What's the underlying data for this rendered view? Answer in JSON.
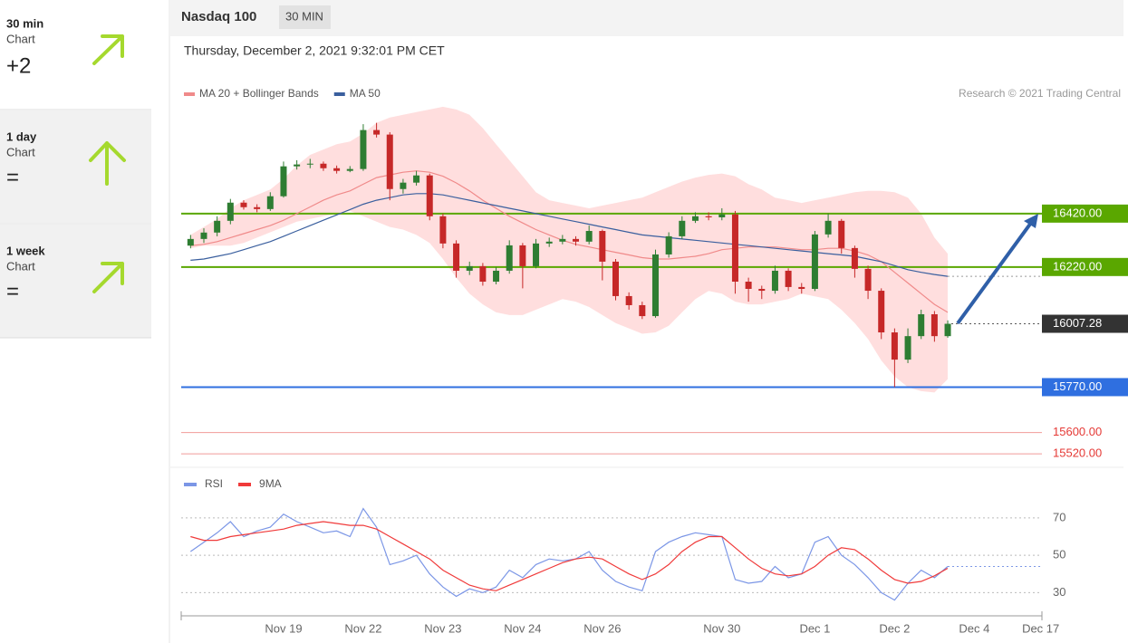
{
  "header": {
    "title": "Nasdaq 100",
    "interval": "30 MIN",
    "datetime": "Thursday, December 2, 2021 9:32:01 PM CET"
  },
  "sidebar": [
    {
      "title": "30 min",
      "subtitle": "Chart",
      "value": "+2"
    },
    {
      "title": "1 day",
      "subtitle": "Chart",
      "value": "="
    },
    {
      "title": "1 week",
      "subtitle": "Chart",
      "value": "="
    }
  ],
  "chart_data": [
    {
      "type": "candlestick",
      "credit": "Research © 2021 Trading Central",
      "up_color": "#2e7d32",
      "down_color": "#c62828",
      "ylim": [
        15490,
        16830
      ],
      "open": [
        16300,
        16325,
        16349,
        16393,
        16461,
        16444,
        16437,
        16485,
        16597,
        16604,
        16607,
        16590,
        16580,
        16587,
        16733,
        16716,
        16512,
        16536,
        16563,
        16410,
        16308,
        16206,
        16223,
        16165,
        16206,
        16301,
        16223,
        16308,
        16315,
        16325,
        16315,
        16355,
        16240,
        16111,
        16077,
        16036,
        16267,
        16335,
        16393,
        16410,
        16406,
        16417,
        16165,
        16138,
        16131,
        16206,
        16145,
        16138,
        16342,
        16393,
        16291,
        16213,
        16131,
        15975,
        15873,
        15961,
        16043,
        15961
      ],
      "high": [
        16340,
        16365,
        16410,
        16475,
        16470,
        16455,
        16500,
        16615,
        16620,
        16625,
        16615,
        16600,
        16598,
        16755,
        16760,
        16725,
        16550,
        16580,
        16570,
        16420,
        16320,
        16240,
        16235,
        16220,
        16320,
        16310,
        16325,
        16330,
        16340,
        16335,
        16375,
        16360,
        16250,
        16125,
        16090,
        16285,
        16350,
        16410,
        16425,
        16425,
        16440,
        16430,
        16180,
        16150,
        16225,
        16215,
        16160,
        16355,
        16420,
        16400,
        16300,
        16225,
        16140,
        15990,
        15990,
        16060,
        16055,
        16020
      ],
      "low": [
        16290,
        16310,
        16335,
        16380,
        16435,
        16425,
        16430,
        16480,
        16585,
        16590,
        16580,
        16570,
        16575,
        16580,
        16705,
        16470,
        16495,
        16525,
        16395,
        16290,
        16180,
        16190,
        16150,
        16155,
        16195,
        16140,
        16215,
        16295,
        16305,
        16300,
        16305,
        16170,
        16095,
        16060,
        16025,
        16030,
        16255,
        16325,
        16385,
        16395,
        16395,
        16120,
        16090,
        16100,
        16120,
        16130,
        16120,
        16130,
        16330,
        16270,
        16180,
        16100,
        15950,
        15770,
        15860,
        15950,
        15940,
        15955
      ],
      "close": [
        16325,
        16349,
        16393,
        16461,
        16444,
        16437,
        16485,
        16597,
        16604,
        16607,
        16590,
        16580,
        16587,
        16733,
        16716,
        16512,
        16536,
        16563,
        16410,
        16308,
        16206,
        16223,
        16165,
        16206,
        16301,
        16223,
        16308,
        16315,
        16325,
        16315,
        16355,
        16240,
        16111,
        16077,
        16036,
        16267,
        16335,
        16393,
        16410,
        16406,
        16417,
        16165,
        16138,
        16131,
        16206,
        16145,
        16138,
        16342,
        16393,
        16291,
        16213,
        16131,
        15975,
        15873,
        15961,
        16043,
        15961,
        16007.28
      ],
      "series": [
        {
          "name": "MA 20 + Bollinger Bands",
          "color": "#f08a8a",
          "band_color": "#ffdede",
          "values": [
            16300,
            16305,
            16315,
            16330,
            16345,
            16360,
            16375,
            16395,
            16420,
            16445,
            16470,
            16490,
            16505,
            16530,
            16555,
            16565,
            16575,
            16580,
            16575,
            16560,
            16535,
            16505,
            16470,
            16440,
            16410,
            16385,
            16360,
            16340,
            16320,
            16305,
            16295,
            16285,
            16275,
            16265,
            16255,
            16250,
            16250,
            16255,
            16260,
            16270,
            16285,
            16290,
            16295,
            16295,
            16295,
            16290,
            16285,
            16285,
            16290,
            16290,
            16280,
            16265,
            16240,
            16200,
            16160,
            16120,
            16080,
            16050
          ],
          "band_upper": [
            16340,
            16370,
            16400,
            16440,
            16470,
            16490,
            16510,
            16550,
            16600,
            16640,
            16660,
            16680,
            16690,
            16720,
            16760,
            16780,
            16790,
            16800,
            16810,
            16820,
            16810,
            16790,
            16740,
            16680,
            16620,
            16560,
            16500,
            16470,
            16460,
            16450,
            16440,
            16450,
            16460,
            16470,
            16480,
            16500,
            16520,
            16540,
            16555,
            16565,
            16570,
            16560,
            16530,
            16510,
            16480,
            16470,
            16460,
            16470,
            16480,
            16490,
            16500,
            16505,
            16505,
            16500,
            16480,
            16420,
            16330,
            16270
          ],
          "band_lower": [
            16290,
            16300,
            16300,
            16300,
            16310,
            16330,
            16350,
            16370,
            16390,
            16400,
            16410,
            16420,
            16430,
            16410,
            16390,
            16370,
            16360,
            16340,
            16310,
            16250,
            16180,
            16120,
            16080,
            16050,
            16040,
            16040,
            16060,
            16080,
            16100,
            16090,
            16070,
            16040,
            16010,
            15990,
            15970,
            15975,
            16000,
            16050,
            16100,
            16130,
            16120,
            16090,
            16080,
            16080,
            16090,
            16100,
            16120,
            16110,
            16100,
            16060,
            16010,
            15950,
            15870,
            15810,
            15770,
            15755,
            15750,
            15800
          ]
        },
        {
          "name": "MA 50",
          "color": "#3a5f9e",
          "values": [
            16245,
            16250,
            16260,
            16270,
            16285,
            16300,
            16315,
            16335,
            16355,
            16375,
            16395,
            16415,
            16435,
            16455,
            16470,
            16480,
            16490,
            16495,
            16495,
            16490,
            16480,
            16470,
            16460,
            16450,
            16440,
            16430,
            16420,
            16410,
            16400,
            16390,
            16380,
            16370,
            16360,
            16350,
            16340,
            16335,
            16330,
            16325,
            16320,
            16315,
            16310,
            16305,
            16300,
            16295,
            16290,
            16285,
            16280,
            16275,
            16270,
            16265,
            16260,
            16250,
            16240,
            16225,
            16210,
            16200,
            16192,
            16185
          ]
        }
      ],
      "levels": [
        {
          "value": 16420,
          "label": "16420.00",
          "color": "#5aa700",
          "boxed": true
        },
        {
          "value": 16220,
          "label": "16220.00",
          "color": "#5aa700",
          "boxed": true
        },
        {
          "value": 15770,
          "label": "15770.00",
          "color": "#2f6fe0",
          "boxed": true
        },
        {
          "value": 15600,
          "label": "15600.00",
          "color": "#e53935",
          "boxed": false
        },
        {
          "value": 15520,
          "label": "15520.00",
          "color": "#e53935",
          "boxed": false
        }
      ],
      "last_price": 16007.28
    },
    {
      "type": "line",
      "categories": [
        null,
        null,
        null,
        null,
        null,
        null,
        null,
        "Nov 19",
        null,
        null,
        null,
        null,
        null,
        "Nov 22",
        null,
        null,
        null,
        null,
        null,
        "Nov 23",
        null,
        null,
        null,
        null,
        null,
        "Nov 24",
        null,
        null,
        null,
        null,
        null,
        "Nov 26",
        null,
        null,
        null,
        null,
        null,
        null,
        null,
        null,
        "Nov 30",
        null,
        null,
        null,
        null,
        null,
        null,
        "Dec 1",
        null,
        null,
        null,
        null,
        null,
        "Dec 2",
        null,
        null,
        null,
        null,
        null,
        "Dec 4",
        null,
        null,
        null,
        null,
        "Dec 17"
      ],
      "ylim": [
        20,
        83
      ],
      "yticks": [
        70,
        50,
        30
      ],
      "grid": true,
      "series": [
        {
          "name": "RSI",
          "color": "#7b96e6",
          "values": [
            52,
            57,
            62,
            68,
            60,
            63,
            65,
            72,
            68,
            65,
            62,
            63,
            60,
            75,
            65,
            45,
            47,
            50,
            40,
            33,
            28,
            32,
            30,
            33,
            42,
            38,
            45,
            48,
            47,
            48,
            52,
            42,
            36,
            33,
            31,
            52,
            57,
            60,
            62,
            61,
            60,
            37,
            35,
            36,
            44,
            38,
            40,
            57,
            60,
            50,
            45,
            38,
            30,
            26,
            35,
            42,
            38,
            44,
            null,
            null,
            null,
            null,
            null,
            null,
            null
          ]
        },
        {
          "name": "9MA",
          "color": "#f03a3a",
          "values": [
            60,
            58,
            58,
            60,
            61,
            62,
            63,
            64,
            66,
            67,
            68,
            67,
            66,
            66,
            64,
            60,
            56,
            52,
            48,
            42,
            38,
            34,
            32,
            31,
            34,
            37,
            40,
            43,
            46,
            48,
            49,
            48,
            44,
            40,
            37,
            40,
            45,
            52,
            57,
            60,
            60,
            54,
            48,
            43,
            40,
            39,
            40,
            44,
            50,
            54,
            53,
            48,
            42,
            37,
            35,
            36,
            39,
            43,
            null,
            null,
            null,
            null,
            null,
            null,
            null
          ]
        }
      ]
    }
  ]
}
